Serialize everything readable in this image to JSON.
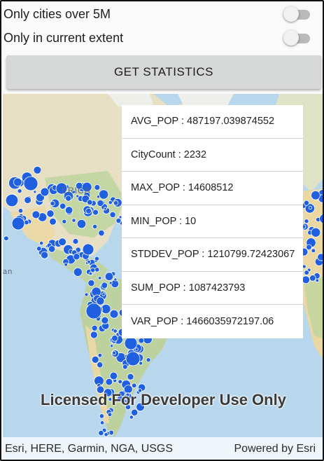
{
  "toggles": [
    {
      "label": "Only cities over 5M",
      "checked": false
    },
    {
      "label": "Only in current extent",
      "checked": false
    }
  ],
  "button": {
    "label": "GET STATISTICS"
  },
  "map": {
    "watermark": "Licensed For Developer Use Only",
    "attribution_left": "Esri, HERE, Garmin, NGA, USGS",
    "attribution_right": "Powered by Esri",
    "place_label_partial": "ERICA",
    "place_label_small": "an",
    "colors": {
      "ocean": "#b8d6ec",
      "land": "#e8e1c9",
      "vegetation": "#bfd3a5",
      "desert": "#ecd9a8",
      "marker": "#1f5fe0",
      "marker_stroke": "#ffffff"
    }
  },
  "statistics": [
    "AVG_POP : 487197.039874552",
    "CityCount : 2232",
    "MAX_POP : 14608512",
    "MIN_POP : 10",
    "STDDEV_POP : 1210799.72423067",
    "SUM_POP : 1087423793",
    "VAR_POP : 1466035972197.06"
  ]
}
